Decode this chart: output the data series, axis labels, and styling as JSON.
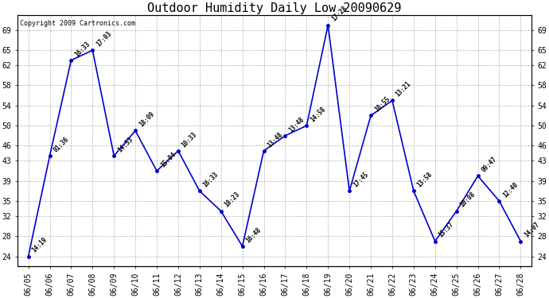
{
  "title": "Outdoor Humidity Daily Low 20090629",
  "copyright": "Copyright 2009 Cartronics.com",
  "x_labels": [
    "06/05",
    "06/06",
    "06/07",
    "06/08",
    "06/09",
    "06/10",
    "06/11",
    "06/12",
    "06/13",
    "06/14",
    "06/15",
    "06/16",
    "06/17",
    "06/18",
    "06/19",
    "06/20",
    "06/21",
    "06/22",
    "06/23",
    "06/24",
    "06/25",
    "06/26",
    "06/27",
    "06/28"
  ],
  "y_values": [
    24,
    44,
    63,
    65,
    44,
    49,
    41,
    45,
    37,
    33,
    26,
    45,
    48,
    50,
    70,
    37,
    52,
    55,
    37,
    27,
    33,
    40,
    35,
    27
  ],
  "point_labels": [
    "14:19",
    "01:36",
    "16:33",
    "17:03",
    "14:53",
    "18:09",
    "15:04",
    "10:33",
    "16:33",
    "18:23",
    "16:48",
    "13:48",
    "13:48",
    "14:58",
    "17:28",
    "17:45",
    "10:55",
    "13:21",
    "13:58",
    "15:37",
    "10:08",
    "09:47",
    "12:40",
    "14:07"
  ],
  "ylim_min": 22,
  "ylim_max": 72,
  "yticks": [
    24,
    28,
    32,
    35,
    39,
    43,
    46,
    50,
    54,
    58,
    62,
    65,
    69
  ],
  "ytick_labels": [
    "24",
    "28",
    "32",
    "35",
    "39",
    "43",
    "46",
    "50",
    "54",
    "58",
    "62",
    "65",
    "69"
  ],
  "line_color": "#0000cc",
  "marker_color": "#0000cc",
  "bg_color": "#ffffff",
  "grid_color": "#aaaaaa",
  "title_fontsize": 11,
  "tick_fontsize": 7,
  "point_label_fontsize": 5.5,
  "copyright_fontsize": 6
}
